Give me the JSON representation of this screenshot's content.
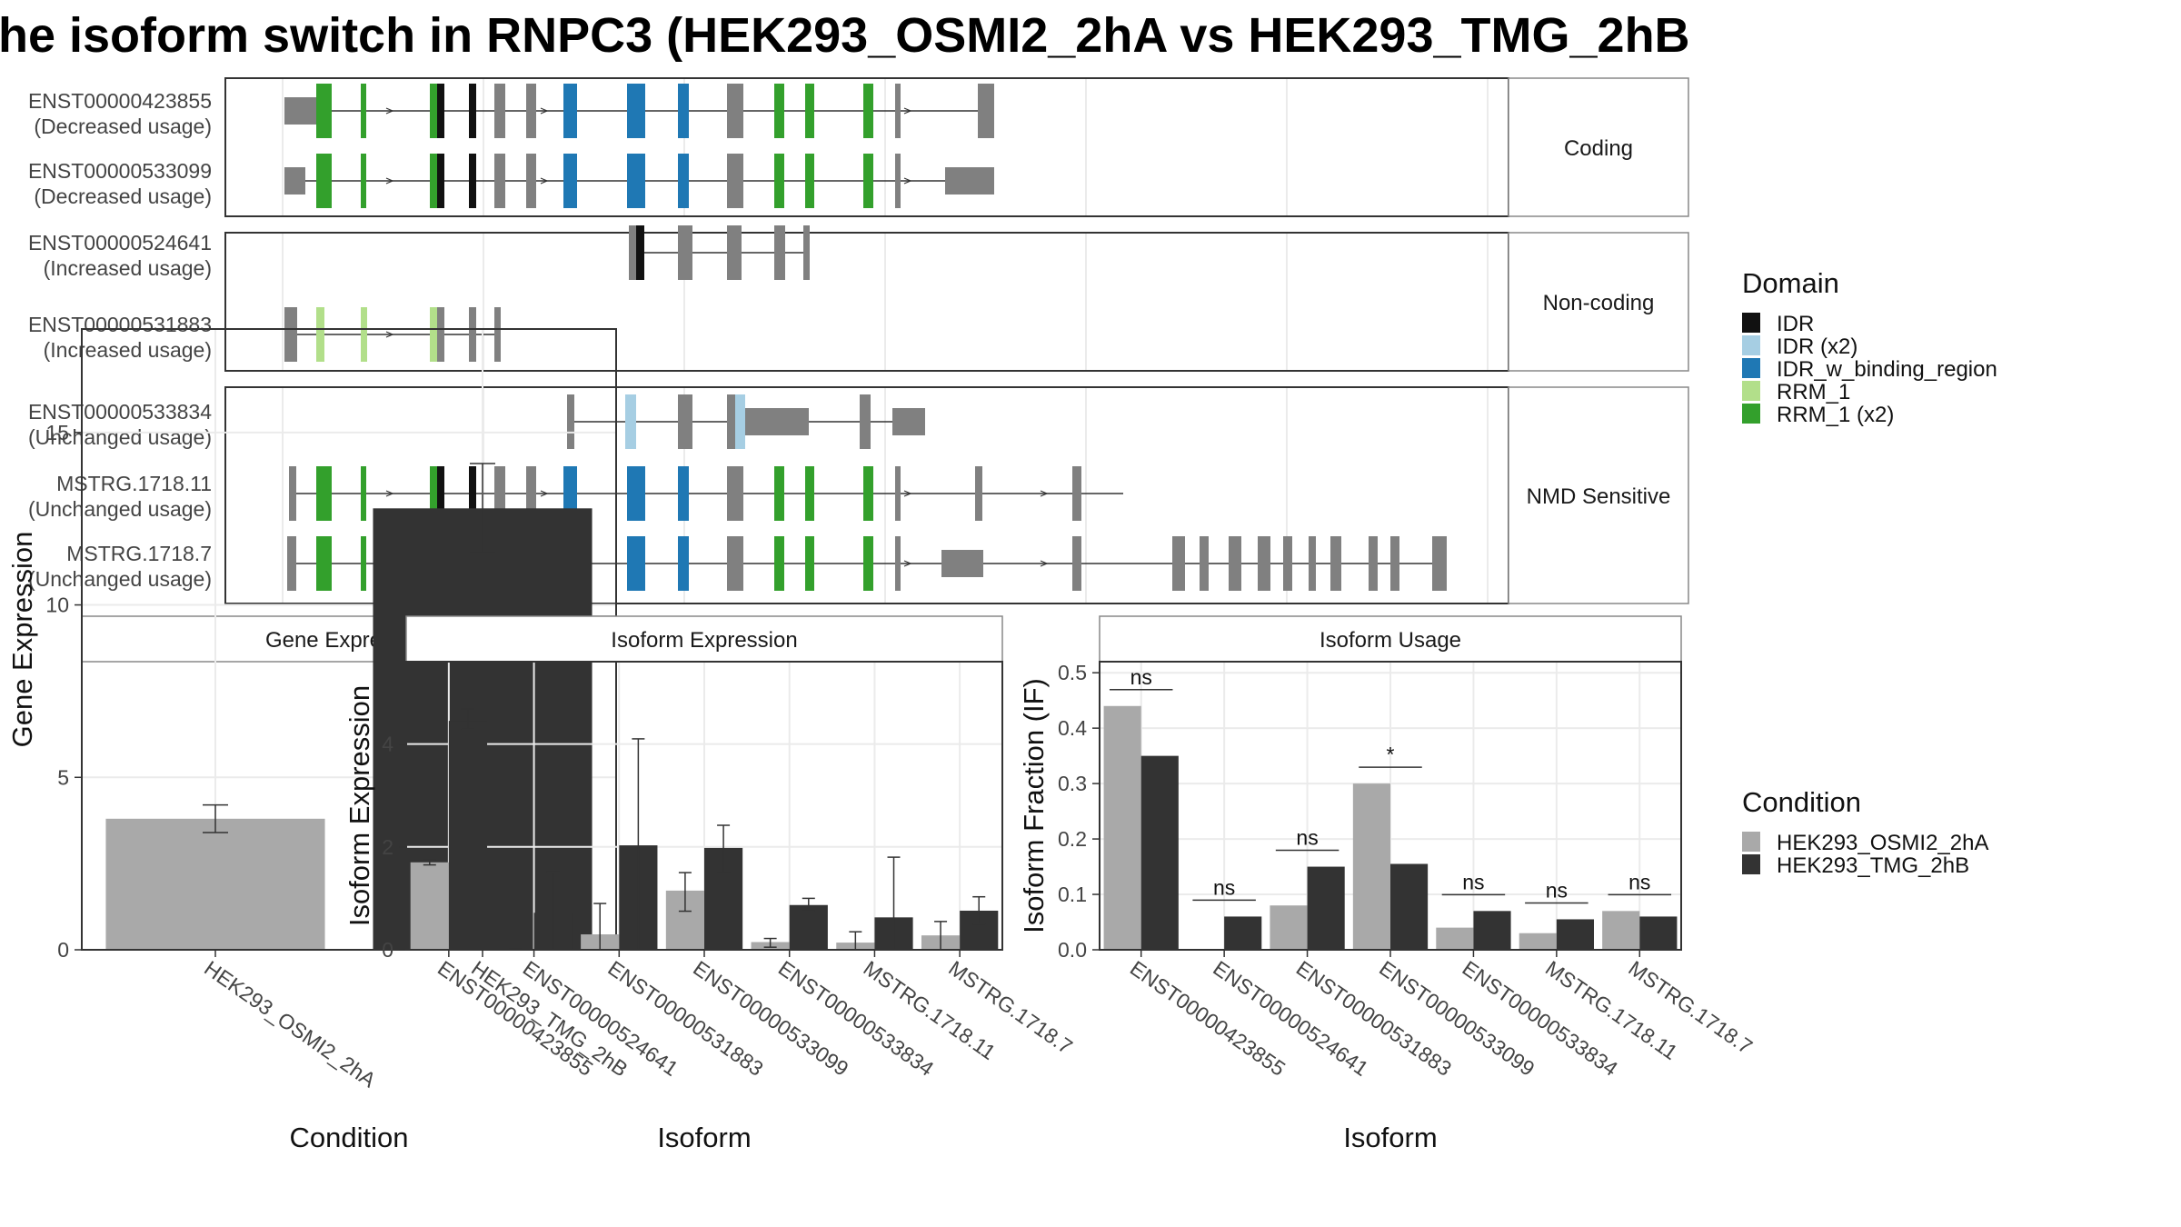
{
  "title": "he isoform switch in RNPC3 (HEK293_OSMI2_2hA vs HEK293_TMG_2hB",
  "colors": {
    "IDR": "#111111",
    "IDR (x2)": "#a6cee3",
    "IDR_w_binding_region": "#1f78b4",
    "RRM_1": "#b2df8a",
    "RRM_1 (x2)": "#33a02c",
    "exon": "#808080",
    "cond_a": "#a9a9a9",
    "cond_b": "#333333"
  },
  "transcripts": {
    "groups": [
      {
        "label": "Coding",
        "isoforms": [
          {
            "name": "ENST00000423855",
            "usage": "(Decreased usage)"
          },
          {
            "name": "ENST00000533099",
            "usage": "(Decreased usage)"
          }
        ]
      },
      {
        "label": "Non-coding",
        "isoforms": [
          {
            "name": "ENST00000524641",
            "usage": "(Increased usage)"
          },
          {
            "name": "ENST00000531883",
            "usage": "(Increased usage)"
          }
        ]
      },
      {
        "label": "NMD Sensitive",
        "isoforms": [
          {
            "name": "ENST00000533834",
            "usage": "(Unchanged usage)"
          },
          {
            "name": "MSTRG.1718.11",
            "usage": "(Unchanged usage)"
          },
          {
            "name": "MSTRG.1718.7",
            "usage": "(Unchanged usage)"
          }
        ]
      }
    ]
  },
  "legend_domain": {
    "title": "Domain",
    "items": [
      {
        "label": "IDR",
        "color": "#111111"
      },
      {
        "label": "IDR (x2)",
        "color": "#a6cee3"
      },
      {
        "label": "IDR_w_binding_region",
        "color": "#1f78b4"
      },
      {
        "label": "RRM_1",
        "color": "#b2df8a"
      },
      {
        "label": "RRM_1 (x2)",
        "color": "#33a02c"
      }
    ]
  },
  "legend_condition": {
    "title": "Condition",
    "items": [
      {
        "label": "HEK293_OSMI2_2hA",
        "color": "#a9a9a9"
      },
      {
        "label": "HEK293_TMG_2hB",
        "color": "#333333"
      }
    ]
  },
  "chart_data": [
    {
      "type": "bar",
      "title": "Gene Expression",
      "xlabel": "Condition",
      "ylabel": "Gene Expression",
      "ylim": [
        0,
        18
      ],
      "yticks": [
        "0",
        "5",
        "10",
        "15"
      ],
      "categories": [
        "HEK293_OSMI2_2hA",
        "HEK293_TMG_2hB"
      ],
      "values": [
        3.8,
        12.8
      ],
      "errors": [
        [
          3.4,
          4.2
        ],
        [
          11.5,
          14.1
        ]
      ]
    },
    {
      "type": "bar",
      "title": "Isoform Expression",
      "xlabel": "Isoform",
      "ylabel": "Isoform Expression",
      "ylim": [
        0,
        5.6
      ],
      "yticks": [
        "0",
        "2",
        "4"
      ],
      "categories": [
        "ENST00000423855",
        "ENST00000524641",
        "ENST00000531883",
        "ENST00000533099",
        "ENST00000533834",
        "MSTRG.1718.11",
        "MSTRG.1718.7"
      ],
      "series": [
        {
          "name": "HEK293_OSMI2_2hA",
          "values": [
            1.7,
            0.01,
            0.3,
            1.15,
            0.15,
            0.14,
            0.28
          ],
          "errors": [
            [
              1.65,
              1.75
            ],
            [
              0.0,
              0.02
            ],
            [
              0.0,
              0.9
            ],
            [
              0.75,
              1.5
            ],
            [
              0.05,
              0.22
            ],
            [
              0.0,
              0.35
            ],
            [
              0.0,
              0.55
            ]
          ]
        },
        {
          "name": "HEK293_TMG_2hB",
          "values": [
            4.45,
            0.72,
            2.03,
            1.98,
            0.87,
            0.63,
            0.76
          ],
          "errors": [
            [
              4.28,
              4.68
            ],
            [
              0.0,
              1.52
            ],
            [
              0.0,
              4.1
            ],
            [
              1.5,
              2.42
            ],
            [
              0.75,
              1.0
            ],
            [
              0.0,
              1.8
            ],
            [
              0.5,
              1.03
            ]
          ]
        }
      ]
    },
    {
      "type": "bar",
      "title": "Isoform Usage",
      "xlabel": "Isoform",
      "ylabel": "Isoform Fraction (IF)",
      "ylim": [
        0,
        0.52
      ],
      "yticks": [
        "0.0",
        "0.1",
        "0.2",
        "0.3",
        "0.4",
        "0.5"
      ],
      "categories": [
        "ENST00000423855",
        "ENST00000524641",
        "ENST00000531883",
        "ENST00000533099",
        "ENST00000533834",
        "MSTRG.1718.11",
        "MSTRG.1718.7"
      ],
      "series": [
        {
          "name": "HEK293_OSMI2_2hA",
          "values": [
            0.44,
            0.0,
            0.08,
            0.3,
            0.04,
            0.03,
            0.07
          ]
        },
        {
          "name": "HEK293_TMG_2hB",
          "values": [
            0.35,
            0.06,
            0.15,
            0.155,
            0.07,
            0.055,
            0.06
          ]
        }
      ],
      "significance": [
        "ns",
        "ns",
        "ns",
        "*",
        "ns",
        "ns",
        "ns"
      ]
    }
  ]
}
